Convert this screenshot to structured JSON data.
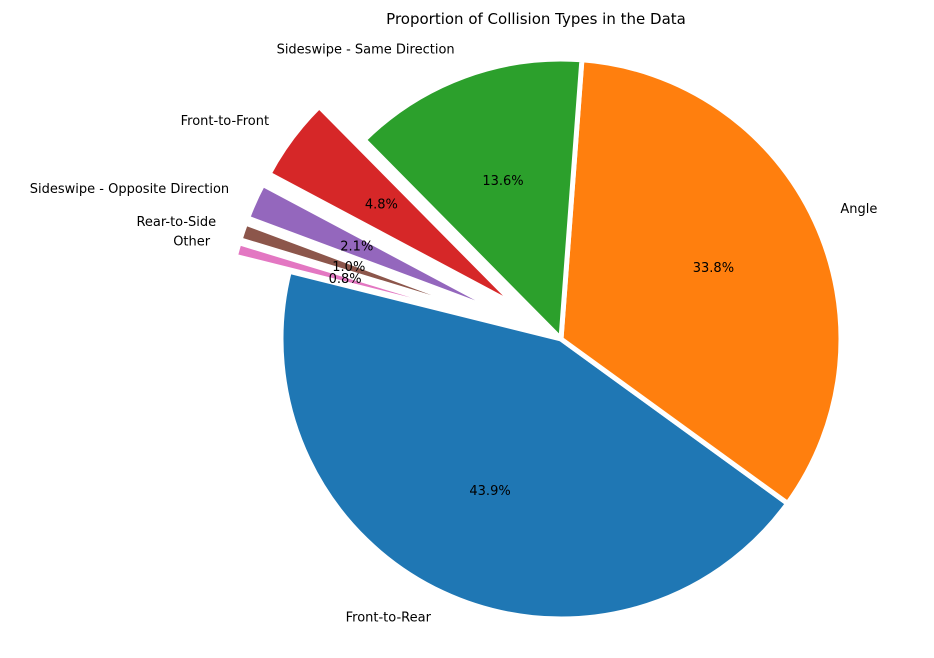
{
  "chart_data": {
    "type": "pie",
    "title": "Proportion of Collision Types in the Data",
    "slices": [
      {
        "label": "Front-to-Rear",
        "value": 43.9,
        "display": "43.9%",
        "color": "#1f77b4",
        "exploded": false
      },
      {
        "label": "Angle",
        "value": 33.8,
        "display": "33.8%",
        "color": "#ff7f0e",
        "exploded": false
      },
      {
        "label": "Sideswipe - Same Direction",
        "value": 13.6,
        "display": "13.6%",
        "color": "#2ca02c",
        "exploded": false
      },
      {
        "label": "Front-to-Front",
        "value": 4.8,
        "display": "4.8%",
        "color": "#d62728",
        "exploded": true
      },
      {
        "label": "Sideswipe - Opposite Direction",
        "value": 2.1,
        "display": "2.1%",
        "color": "#9467bd",
        "exploded": true
      },
      {
        "label": "Rear-to-Side",
        "value": 1.0,
        "display": "1.0%",
        "color": "#8c564b",
        "exploded": true
      },
      {
        "label": "Other",
        "value": 0.8,
        "display": "0.8%",
        "color": "#e377c2",
        "exploded": true
      }
    ],
    "start_angle_deg": 166,
    "direction": "counterclockwise",
    "slice_edge_color": "#ffffff",
    "legend": "none"
  }
}
